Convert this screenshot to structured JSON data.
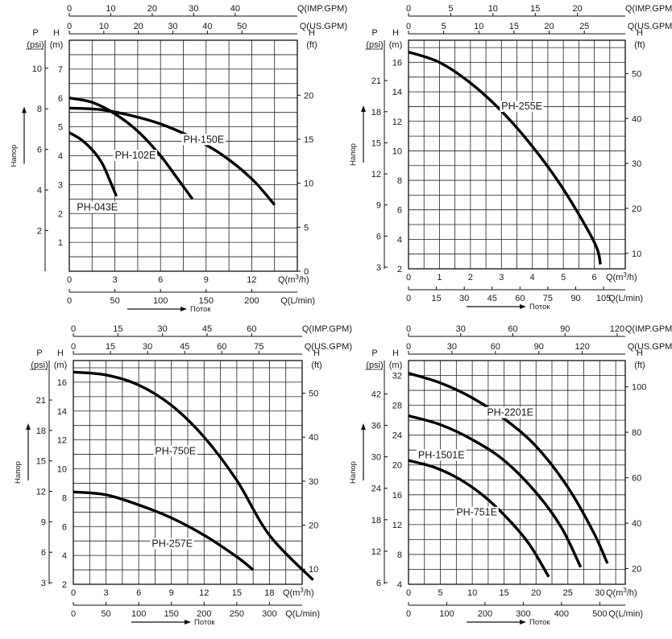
{
  "chart_data": [
    {
      "type": "line",
      "axis_titles": {
        "head": "Напор",
        "flow": "Поток"
      },
      "units": {
        "imp": "Q(IMP.GPM)",
        "us": "Q(US.GPM)",
        "m3h": "Q(m³/h)",
        "lmin": "Q(L/min)",
        "p": "P",
        "psi": "(psi)",
        "h_m": "H",
        "m": "(m)",
        "h_ft": "H",
        "ft": "(ft)"
      },
      "x_range_m3h": [
        0,
        15
      ],
      "h_range_m": [
        0,
        8
      ],
      "ticks": {
        "m3h": [
          0,
          3,
          6,
          9,
          12
        ],
        "lmin": [
          0,
          50,
          100,
          150,
          200
        ],
        "us": [
          0,
          10,
          20,
          30,
          40,
          50
        ],
        "imp": [
          0,
          10,
          20,
          30,
          40
        ],
        "h_m": [
          1,
          2,
          3,
          4,
          5,
          6,
          7
        ],
        "psi": [
          2,
          4,
          6,
          8,
          10
        ],
        "ft": [
          0,
          5,
          10,
          15,
          20
        ]
      },
      "series": [
        {
          "name": "PH-043E",
          "x": [
            0,
            0.8,
            1.6,
            2.2,
            2.7,
            3.1
          ],
          "y": [
            4.8,
            4.55,
            4.15,
            3.7,
            3.1,
            2.6
          ]
        },
        {
          "name": "PH-102E",
          "x": [
            0,
            1.5,
            3,
            4.5,
            6,
            7.2,
            8.1
          ],
          "y": [
            6.0,
            5.85,
            5.45,
            4.85,
            4.0,
            3.15,
            2.5
          ]
        },
        {
          "name": "PH-150E",
          "x": [
            0,
            2,
            4,
            6,
            8,
            10,
            12,
            13.5
          ],
          "y": [
            5.65,
            5.6,
            5.4,
            5.1,
            4.65,
            4.05,
            3.2,
            2.3
          ]
        }
      ],
      "labels": [
        {
          "text": "PH-043E",
          "at": [
            0.5,
            2.1
          ]
        },
        {
          "text": "PH-102E",
          "at": [
            3.0,
            3.9
          ]
        },
        {
          "text": "PH-150E",
          "at": [
            7.5,
            4.45
          ]
        }
      ]
    },
    {
      "type": "line",
      "axis_titles": {
        "head": "Напор",
        "flow": "Поток"
      },
      "units": {
        "imp": "Q(IMP.GPM)",
        "us": "Q(US.GPM)",
        "m3h": "Q(m³/h)",
        "lmin": "Q(L/min)",
        "p": "P",
        "psi": "(psi)",
        "h_m": "H",
        "m": "(m)",
        "h_ft": "H",
        "ft": "(ft)"
      },
      "x_range_m3h": [
        0,
        7
      ],
      "h_range_m": [
        2,
        17.5
      ],
      "ticks": {
        "m3h": [
          0,
          1,
          2,
          3,
          4,
          5,
          6
        ],
        "lmin": [
          0,
          15,
          30,
          45,
          60,
          75,
          90,
          105
        ],
        "us": [
          0,
          5,
          10,
          15,
          20,
          25
        ],
        "imp": [
          0,
          5,
          10,
          15,
          20
        ],
        "h_m": [
          2,
          4,
          6,
          8,
          10,
          12,
          14,
          16
        ],
        "psi": [
          3,
          6,
          9,
          12,
          15,
          18,
          21
        ],
        "ft": [
          10,
          20,
          30,
          40,
          50
        ]
      },
      "series": [
        {
          "name": "PH-255E",
          "x": [
            0,
            1,
            2,
            3,
            4,
            5,
            6,
            6.2
          ],
          "y": [
            16.7,
            16.0,
            14.6,
            12.7,
            10.3,
            7.4,
            3.8,
            2.3
          ]
        }
      ],
      "labels": [
        {
          "text": "PH-255E",
          "at": [
            3.0,
            12.8
          ]
        }
      ]
    },
    {
      "type": "line",
      "axis_titles": {
        "head": "Напор",
        "flow": "Поток"
      },
      "units": {
        "imp": "Q(IMP.GPM)",
        "us": "Q(US.GPM)",
        "m3h": "Q(m³/h)",
        "lmin": "Q(L/min)",
        "p": "P",
        "psi": "(psi)",
        "h_m": "H",
        "m": "(m)",
        "h_ft": "H",
        "ft": "(ft)"
      },
      "x_range_m3h": [
        0,
        21
      ],
      "h_range_m": [
        2,
        17.5
      ],
      "ticks": {
        "m3h": [
          0,
          3,
          6,
          9,
          12,
          15,
          18
        ],
        "lmin": [
          0,
          50,
          100,
          150,
          200,
          250,
          300
        ],
        "us": [
          0,
          15,
          30,
          45,
          60,
          75
        ],
        "imp": [
          0,
          15,
          30,
          45,
          60
        ],
        "h_m": [
          2,
          4,
          6,
          8,
          10,
          12,
          14,
          16
        ],
        "psi": [
          3,
          6,
          9,
          12,
          15,
          18,
          21
        ],
        "ft": [
          10,
          20,
          30,
          40,
          50
        ]
      },
      "series": [
        {
          "name": "PH-750E",
          "x": [
            0,
            3,
            6,
            9,
            12,
            15,
            18,
            22
          ],
          "y": [
            16.7,
            16.5,
            15.8,
            14.4,
            12.2,
            9.2,
            5.4,
            2.3
          ]
        },
        {
          "name": "PH-257E",
          "x": [
            0,
            3,
            6,
            9,
            12,
            15,
            16.5
          ],
          "y": [
            8.4,
            8.2,
            7.5,
            6.6,
            5.4,
            3.9,
            3.0
          ]
        }
      ],
      "labels": [
        {
          "text": "PH-750E",
          "at": [
            7.5,
            11.0
          ]
        },
        {
          "text": "PH-257E",
          "at": [
            7.2,
            4.6
          ]
        }
      ]
    },
    {
      "type": "line",
      "axis_titles": {
        "head": "Напор",
        "flow": "Поток"
      },
      "units": {
        "imp": "Q(IMP.GPM)",
        "us": "Q(US.GPM)",
        "m3h": "Q(m³/h)",
        "lmin": "Q(L/min)",
        "p": "P",
        "psi": "(psi)",
        "h_m": "H",
        "m": "(m)",
        "h_ft": "H",
        "ft": "(ft)"
      },
      "x_range_m3h": [
        0,
        34
      ],
      "h_range_m": [
        4,
        34
      ],
      "ticks": {
        "m3h": [
          0,
          5,
          10,
          15,
          20,
          25,
          30
        ],
        "lmin": [
          0,
          100,
          200,
          300,
          400,
          500
        ],
        "us": [
          0,
          30,
          60,
          90,
          120
        ],
        "imp": [
          0,
          30,
          60,
          90,
          120
        ],
        "h_m": [
          4,
          8,
          12,
          16,
          20,
          24,
          28,
          32
        ],
        "psi": [
          6,
          12,
          18,
          24,
          30,
          36,
          42
        ],
        "ft": [
          20,
          40,
          60,
          80,
          100
        ]
      },
      "series": [
        {
          "name": "PH-2201E",
          "x": [
            0,
            5,
            10,
            15,
            20,
            25,
            29,
            31.2
          ],
          "y": [
            32.3,
            31.0,
            29.0,
            26.2,
            22.5,
            17.0,
            11.0,
            6.8
          ]
        },
        {
          "name": "PH-1501E",
          "x": [
            0,
            5,
            10,
            15,
            20,
            24,
            27
          ],
          "y": [
            26.6,
            25.4,
            23.4,
            20.6,
            16.3,
            11.6,
            6.3
          ]
        },
        {
          "name": "PH-751E",
          "x": [
            0,
            4,
            8,
            12,
            16,
            19,
            22
          ],
          "y": [
            20.6,
            19.7,
            18.1,
            15.7,
            12.4,
            9.3,
            5.0
          ]
        }
      ],
      "labels": [
        {
          "text": "PH-2201E",
          "at": [
            12.3,
            26.6
          ]
        },
        {
          "text": "PH-1501E",
          "at": [
            1.5,
            20.9
          ]
        },
        {
          "text": "PH-751E",
          "at": [
            7.5,
            13.2
          ]
        }
      ]
    }
  ]
}
